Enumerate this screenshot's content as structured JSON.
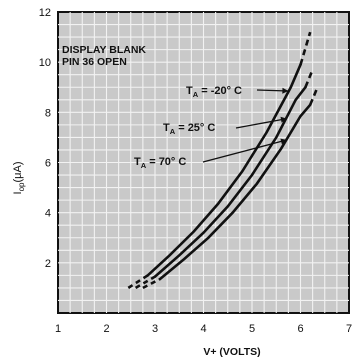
{
  "chart_data": {
    "type": "line",
    "title": "",
    "xlabel": "V+ (VOLTS)",
    "ylabel": "Iop(μA)",
    "ylabel_main": "I",
    "ylabel_sub": "op",
    "ylabel_unit": "(μA)",
    "xlim": [
      1,
      7
    ],
    "ylim": [
      0,
      12
    ],
    "x_ticks": [
      "1",
      "2",
      "3",
      "4",
      "5",
      "6",
      "7"
    ],
    "y_ticks": [
      "2",
      "4",
      "6",
      "8",
      "10",
      "12"
    ],
    "grid": true,
    "background": "#c9c9c9",
    "grid_color": "#f2f2f2",
    "line_color": "#111111",
    "annotations": [
      "DISPLAY BLANK",
      "PIN 36 OPEN"
    ],
    "series": [
      {
        "name": "TA = -20° C",
        "label_main": "T",
        "label_sub": "A",
        "label_rest": " = -20° C",
        "solid": [
          [
            2.85,
            1.5
          ],
          [
            3.3,
            2.3
          ],
          [
            3.8,
            3.25
          ],
          [
            4.3,
            4.35
          ],
          [
            4.8,
            5.65
          ],
          [
            5.3,
            7.2
          ],
          [
            5.8,
            9.0
          ],
          [
            6.0,
            9.9
          ]
        ],
        "dashed_low": [
          [
            2.45,
            1.0
          ],
          [
            2.85,
            1.5
          ]
        ],
        "dashed_high": [
          [
            6.0,
            9.9
          ],
          [
            6.2,
            11.2
          ]
        ]
      },
      {
        "name": "TA = 25° C",
        "label_main": "T",
        "label_sub": "A",
        "label_rest": " = 25° C",
        "solid": [
          [
            3.0,
            1.45
          ],
          [
            3.5,
            2.3
          ],
          [
            4.0,
            3.2
          ],
          [
            4.5,
            4.25
          ],
          [
            5.0,
            5.5
          ],
          [
            5.5,
            7.0
          ],
          [
            5.9,
            8.5
          ],
          [
            6.1,
            9.0
          ]
        ],
        "dashed_low": [
          [
            2.6,
            1.0
          ],
          [
            3.0,
            1.45
          ]
        ],
        "dashed_high": [
          [
            6.1,
            9.0
          ],
          [
            6.25,
            9.7
          ]
        ]
      },
      {
        "name": "TA = 70° C",
        "label_main": "T",
        "label_sub": "A",
        "label_rest": " = 70° C",
        "solid": [
          [
            3.1,
            1.35
          ],
          [
            3.6,
            2.15
          ],
          [
            4.1,
            3.0
          ],
          [
            4.6,
            4.0
          ],
          [
            5.1,
            5.15
          ],
          [
            5.6,
            6.55
          ],
          [
            6.0,
            7.85
          ],
          [
            6.2,
            8.3
          ]
        ],
        "dashed_low": [
          [
            2.75,
            1.0
          ],
          [
            3.1,
            1.35
          ]
        ],
        "dashed_high": [
          [
            6.2,
            8.3
          ],
          [
            6.35,
            9.0
          ]
        ]
      }
    ]
  }
}
